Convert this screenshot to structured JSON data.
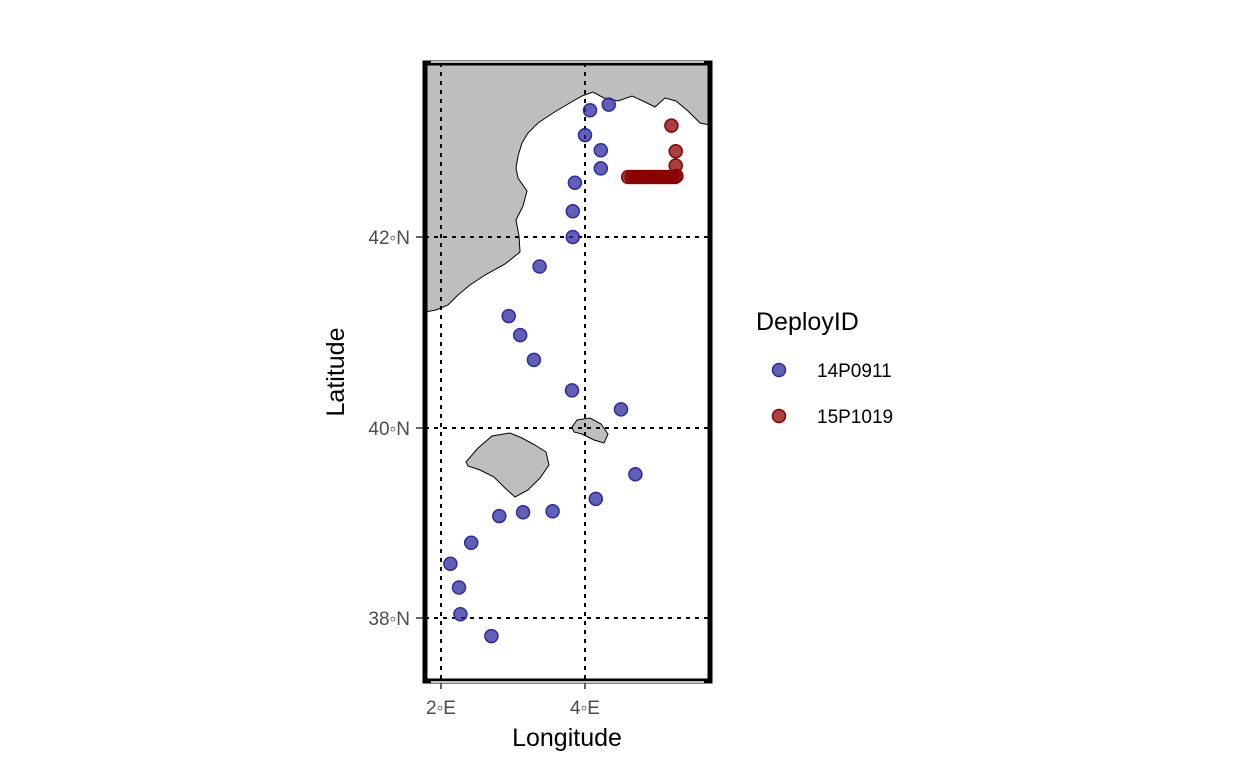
{
  "chart_data": {
    "type": "scatter",
    "subtype": "map",
    "xlabel": "Longitude",
    "ylabel": "Latitude",
    "x_ticks": [
      {
        "value": 2,
        "label": "2◦E"
      },
      {
        "value": 4,
        "label": "4◦E"
      }
    ],
    "y_ticks": [
      {
        "value": 38,
        "label": "38◦N"
      },
      {
        "value": 40,
        "label": "40◦N"
      },
      {
        "value": 42,
        "label": "42◦N"
      }
    ],
    "xlim": [
      1.78,
      5.72
    ],
    "ylim": [
      37.3,
      43.8
    ],
    "graticule": "dotted",
    "land_color": "#bebebe",
    "legend": {
      "title": "DeployID",
      "placement": "right"
    },
    "series": [
      {
        "name": "14P0911",
        "color": "#2b2b9e",
        "points": [
          [
            4.07,
            43.33
          ],
          [
            4.33,
            43.39
          ],
          [
            4.0,
            43.07
          ],
          [
            4.22,
            42.91
          ],
          [
            4.22,
            42.72
          ],
          [
            3.86,
            42.57
          ],
          [
            3.83,
            42.27
          ],
          [
            3.83,
            42.0
          ],
          [
            3.37,
            41.69
          ],
          [
            2.94,
            41.17
          ],
          [
            3.1,
            40.97
          ],
          [
            3.29,
            40.71
          ],
          [
            3.82,
            40.39
          ],
          [
            4.5,
            40.19
          ],
          [
            4.7,
            39.51
          ],
          [
            4.15,
            39.25
          ],
          [
            3.55,
            39.12
          ],
          [
            3.14,
            39.11
          ],
          [
            2.81,
            39.07
          ],
          [
            2.42,
            38.79
          ],
          [
            2.13,
            38.57
          ],
          [
            2.25,
            38.32
          ],
          [
            2.27,
            38.04
          ],
          [
            2.7,
            37.81
          ]
        ]
      },
      {
        "name": "15P1019",
        "color": "#8b0000",
        "points": [
          [
            5.2,
            43.17
          ],
          [
            5.26,
            42.9
          ],
          [
            5.26,
            42.75
          ],
          [
            4.6,
            42.63
          ],
          [
            4.65,
            42.63
          ],
          [
            4.7,
            42.63
          ],
          [
            4.75,
            42.63
          ],
          [
            4.8,
            42.63
          ],
          [
            4.85,
            42.63
          ],
          [
            4.9,
            42.63
          ],
          [
            4.95,
            42.63
          ],
          [
            5.0,
            42.63
          ],
          [
            5.05,
            42.63
          ],
          [
            5.1,
            42.63
          ],
          [
            5.15,
            42.63
          ],
          [
            5.2,
            42.63
          ],
          [
            5.25,
            42.63
          ],
          [
            5.27,
            42.64
          ]
        ]
      }
    ]
  }
}
